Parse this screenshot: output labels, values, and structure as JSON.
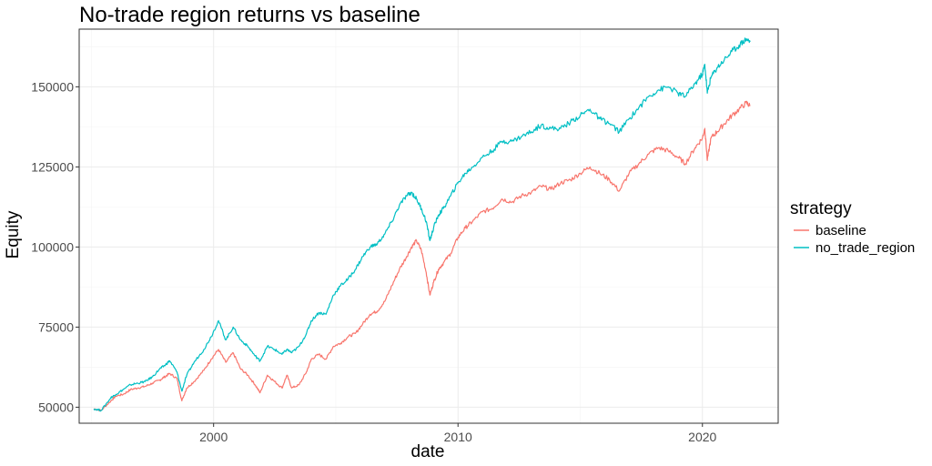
{
  "chart_data": {
    "type": "line",
    "title": "No-trade region returns vs baseline",
    "xlabel": "date",
    "ylabel": "Equity",
    "xlim": [
      1994.5,
      2023.1
    ],
    "ylim": [
      45000,
      168000
    ],
    "x_ticks": [
      2000,
      2010,
      2020
    ],
    "x_tick_labels": [
      "2000",
      "2010",
      "2020"
    ],
    "y_ticks": [
      50000,
      75000,
      100000,
      125000,
      150000
    ],
    "y_tick_labels": [
      "50000",
      "75000",
      "100000",
      "125000",
      "150000"
    ],
    "grid": true,
    "legend": {
      "title": "strategy",
      "position": "right"
    },
    "series": [
      {
        "name": "baseline",
        "color": "#F8766D",
        "points": [
          [
            1995.1,
            49500
          ],
          [
            1995.4,
            49000
          ],
          [
            1995.8,
            52000
          ],
          [
            1996.0,
            53500
          ],
          [
            1996.3,
            54000
          ],
          [
            1996.6,
            55500
          ],
          [
            1996.9,
            56000
          ],
          [
            1997.2,
            56500
          ],
          [
            1997.5,
            57500
          ],
          [
            1997.8,
            58500
          ],
          [
            1998.0,
            59500
          ],
          [
            1998.2,
            60500
          ],
          [
            1998.5,
            59000
          ],
          [
            1998.7,
            52000
          ],
          [
            1998.9,
            56000
          ],
          [
            1999.2,
            58000
          ],
          [
            1999.6,
            61500
          ],
          [
            1999.9,
            65000
          ],
          [
            2000.2,
            68000
          ],
          [
            2000.5,
            64000
          ],
          [
            2000.8,
            67000
          ],
          [
            2001.1,
            62000
          ],
          [
            2001.4,
            60000
          ],
          [
            2001.7,
            57000
          ],
          [
            2001.9,
            54500
          ],
          [
            2002.2,
            60000
          ],
          [
            2002.5,
            58000
          ],
          [
            2002.8,
            56000
          ],
          [
            2003.0,
            60000
          ],
          [
            2003.2,
            56000
          ],
          [
            2003.5,
            57000
          ],
          [
            2003.8,
            61000
          ],
          [
            2004.0,
            65000
          ],
          [
            2004.3,
            66500
          ],
          [
            2004.6,
            65000
          ],
          [
            2004.9,
            69000
          ],
          [
            2005.2,
            70000
          ],
          [
            2005.5,
            72000
          ],
          [
            2005.8,
            73000
          ],
          [
            2006.1,
            76000
          ],
          [
            2006.4,
            79000
          ],
          [
            2006.7,
            80000
          ],
          [
            2007.0,
            83000
          ],
          [
            2007.3,
            88000
          ],
          [
            2007.6,
            93000
          ],
          [
            2007.9,
            97000
          ],
          [
            2008.1,
            100000
          ],
          [
            2008.3,
            102000
          ],
          [
            2008.5,
            99000
          ],
          [
            2008.7,
            92000
          ],
          [
            2008.85,
            85000
          ],
          [
            2009.0,
            89000
          ],
          [
            2009.2,
            93000
          ],
          [
            2009.4,
            95000
          ],
          [
            2009.7,
            98000
          ],
          [
            2010.0,
            103000
          ],
          [
            2010.3,
            106000
          ],
          [
            2010.6,
            108000
          ],
          [
            2011.0,
            111000
          ],
          [
            2011.4,
            112000
          ],
          [
            2011.8,
            115000
          ],
          [
            2012.2,
            114000
          ],
          [
            2012.6,
            116000
          ],
          [
            2013.0,
            117000
          ],
          [
            2013.4,
            119000
          ],
          [
            2013.8,
            118000
          ],
          [
            2014.2,
            120000
          ],
          [
            2014.6,
            121000
          ],
          [
            2015.0,
            123000
          ],
          [
            2015.4,
            125000
          ],
          [
            2015.8,
            123000
          ],
          [
            2016.2,
            121000
          ],
          [
            2016.6,
            117500
          ],
          [
            2017.0,
            123000
          ],
          [
            2017.4,
            126000
          ],
          [
            2017.8,
            129000
          ],
          [
            2018.2,
            131000
          ],
          [
            2018.6,
            130000
          ],
          [
            2019.0,
            128000
          ],
          [
            2019.3,
            126000
          ],
          [
            2019.7,
            131000
          ],
          [
            2020.0,
            134000
          ],
          [
            2020.1,
            137000
          ],
          [
            2020.2,
            127000
          ],
          [
            2020.35,
            134000
          ],
          [
            2020.6,
            136000
          ],
          [
            2020.9,
            138500
          ],
          [
            2021.2,
            141000
          ],
          [
            2021.5,
            143000
          ],
          [
            2021.8,
            145000
          ],
          [
            2021.95,
            144000
          ]
        ]
      },
      {
        "name": "no_trade_region",
        "color": "#00BFC4",
        "points": [
          [
            1995.1,
            49500
          ],
          [
            1995.4,
            49000
          ],
          [
            1995.8,
            53000
          ],
          [
            1996.0,
            54000
          ],
          [
            1996.3,
            55500
          ],
          [
            1996.6,
            57000
          ],
          [
            1996.9,
            57500
          ],
          [
            1997.2,
            58000
          ],
          [
            1997.5,
            59500
          ],
          [
            1997.8,
            62000
          ],
          [
            1998.0,
            63000
          ],
          [
            1998.2,
            64500
          ],
          [
            1998.5,
            61000
          ],
          [
            1998.7,
            55000
          ],
          [
            1998.9,
            60000
          ],
          [
            1999.2,
            64000
          ],
          [
            1999.6,
            68000
          ],
          [
            1999.9,
            72000
          ],
          [
            2000.2,
            77000
          ],
          [
            2000.5,
            71000
          ],
          [
            2000.8,
            75000
          ],
          [
            2001.1,
            71000
          ],
          [
            2001.4,
            69000
          ],
          [
            2001.7,
            66000
          ],
          [
            2001.9,
            64500
          ],
          [
            2002.2,
            69000
          ],
          [
            2002.5,
            68000
          ],
          [
            2002.8,
            66500
          ],
          [
            2003.0,
            68000
          ],
          [
            2003.2,
            67000
          ],
          [
            2003.5,
            69000
          ],
          [
            2003.8,
            73000
          ],
          [
            2004.0,
            77000
          ],
          [
            2004.3,
            79500
          ],
          [
            2004.6,
            79000
          ],
          [
            2004.9,
            85000
          ],
          [
            2005.2,
            88000
          ],
          [
            2005.5,
            90000
          ],
          [
            2005.8,
            93000
          ],
          [
            2006.1,
            97000
          ],
          [
            2006.4,
            100000
          ],
          [
            2006.7,
            101000
          ],
          [
            2007.0,
            104000
          ],
          [
            2007.3,
            108000
          ],
          [
            2007.6,
            113000
          ],
          [
            2007.9,
            116000
          ],
          [
            2008.1,
            117000
          ],
          [
            2008.3,
            115000
          ],
          [
            2008.5,
            112000
          ],
          [
            2008.7,
            108000
          ],
          [
            2008.85,
            102000
          ],
          [
            2009.0,
            106000
          ],
          [
            2009.2,
            110000
          ],
          [
            2009.4,
            112000
          ],
          [
            2009.7,
            116000
          ],
          [
            2010.0,
            120000
          ],
          [
            2010.3,
            123000
          ],
          [
            2010.6,
            125000
          ],
          [
            2011.0,
            128000
          ],
          [
            2011.4,
            130000
          ],
          [
            2011.8,
            133000
          ],
          [
            2012.2,
            133000
          ],
          [
            2012.6,
            134500
          ],
          [
            2013.0,
            136000
          ],
          [
            2013.4,
            138000
          ],
          [
            2013.8,
            137000
          ],
          [
            2014.2,
            137000
          ],
          [
            2014.6,
            139000
          ],
          [
            2015.0,
            141000
          ],
          [
            2015.4,
            143000
          ],
          [
            2015.8,
            140000
          ],
          [
            2016.2,
            138500
          ],
          [
            2016.6,
            136000
          ],
          [
            2017.0,
            140000
          ],
          [
            2017.4,
            143500
          ],
          [
            2017.8,
            147000
          ],
          [
            2018.2,
            149000
          ],
          [
            2018.6,
            150000
          ],
          [
            2019.0,
            148000
          ],
          [
            2019.3,
            147000
          ],
          [
            2019.7,
            151000
          ],
          [
            2020.0,
            154000
          ],
          [
            2020.1,
            157000
          ],
          [
            2020.2,
            148000
          ],
          [
            2020.35,
            153000
          ],
          [
            2020.6,
            156000
          ],
          [
            2020.9,
            158500
          ],
          [
            2021.2,
            161000
          ],
          [
            2021.5,
            163000
          ],
          [
            2021.8,
            165000
          ],
          [
            2021.95,
            164000
          ]
        ]
      }
    ]
  }
}
